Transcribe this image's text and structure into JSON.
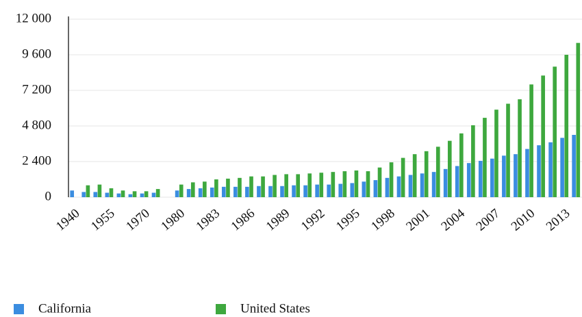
{
  "chart_data": {
    "type": "bar",
    "categories": [
      "1940",
      null,
      null,
      "1955",
      null,
      null,
      "1970",
      null,
      null,
      "1980",
      null,
      null,
      "1983",
      null,
      null,
      "1986",
      null,
      null,
      "1989",
      null,
      null,
      "1992",
      null,
      null,
      "1995",
      null,
      null,
      "1998",
      null,
      null,
      "2001",
      null,
      null,
      "2004",
      null,
      null,
      "2007",
      null,
      null,
      "2010",
      null,
      null,
      "2013",
      null
    ],
    "series": [
      {
        "name": "California",
        "color": "#3b8de0",
        "values": [
          450,
          350,
          350,
          300,
          250,
          200,
          250,
          300,
          null,
          450,
          550,
          600,
          650,
          700,
          700,
          700,
          750,
          750,
          750,
          800,
          800,
          850,
          850,
          900,
          950,
          1050,
          1150,
          1300,
          1400,
          1500,
          1600,
          1700,
          1900,
          2100,
          2300,
          2450,
          2600,
          2800,
          2900,
          3250,
          3500,
          3700,
          4000,
          4200
        ]
      },
      {
        "name": "United States",
        "color": "#3ea83e",
        "values": [
          null,
          800,
          850,
          600,
          450,
          400,
          400,
          550,
          null,
          850,
          1000,
          1050,
          1200,
          1250,
          1300,
          1400,
          1400,
          1500,
          1550,
          1550,
          1600,
          1650,
          1700,
          1750,
          1800,
          1750,
          2000,
          2350,
          2650,
          2900,
          3100,
          3400,
          3800,
          4300,
          4850,
          5350,
          5900,
          6300,
          6600,
          7600,
          8200,
          8800,
          9600,
          10400
        ]
      }
    ],
    "ylim": [
      0,
      12000
    ],
    "yticks": [
      0,
      {
        "value": 2400,
        "label": "2 400"
      },
      {
        "value": 4800,
        "label": "4 800"
      },
      {
        "value": 7200,
        "label": "7 200"
      },
      {
        "value": 9600,
        "label": "9 600"
      },
      {
        "value": 12000,
        "label": "12 000"
      }
    ],
    "grid": true
  }
}
